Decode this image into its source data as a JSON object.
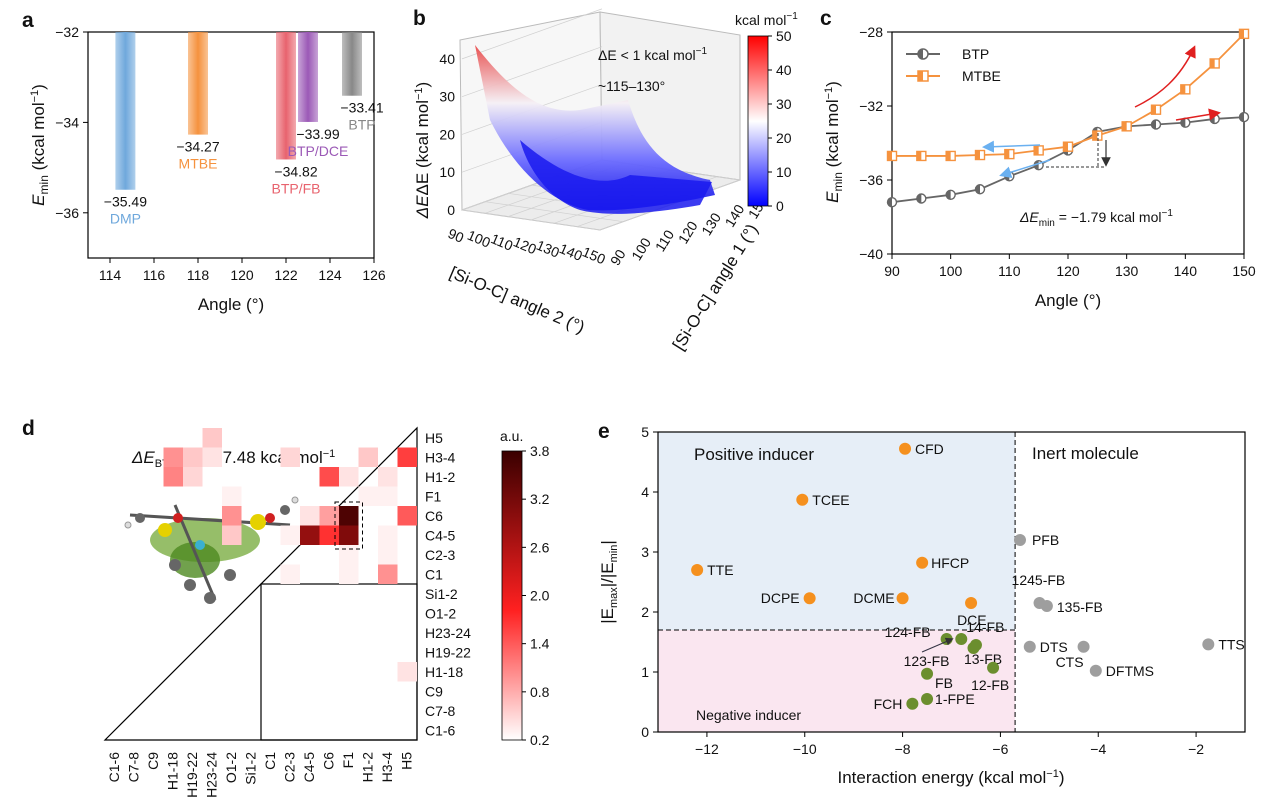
{
  "panels": {
    "a": "a",
    "b": "b",
    "c": "c",
    "d": "d",
    "e": "e"
  },
  "chart_data": [
    {
      "id": "a",
      "type": "bar",
      "xlabel": "Angle (°)",
      "ylabel": "E",
      "ylabel_sub": "min",
      "ylabel_unit": " (kcal mol",
      "xlim": [
        113,
        126
      ],
      "ylim": [
        -37,
        -32
      ],
      "xticks": [
        "114",
        "116",
        "118",
        "120",
        "122",
        "124",
        "126"
      ],
      "yticks": [
        "-32",
        "-34",
        "-36"
      ],
      "bars": [
        {
          "name": "DMP",
          "x": 114.7,
          "value": -35.49,
          "value_label": "−35.49",
          "color": "#6fa8dc"
        },
        {
          "name": "MTBE",
          "x": 118.0,
          "value": -34.27,
          "value_label": "−34.27",
          "color": "#f5923e"
        },
        {
          "name": "BTP/FB",
          "x": 122.0,
          "value": -34.82,
          "value_label": "−34.82",
          "color": "#e8636e"
        },
        {
          "name": "BTP/DCE",
          "x": 123.0,
          "value": -33.99,
          "value_label": "−33.99",
          "color": "#9b59b6"
        },
        {
          "name": "BTP",
          "x": 125.0,
          "value": -33.41,
          "value_label": "−33.41",
          "color": "#888888"
        }
      ]
    },
    {
      "id": "b",
      "type": "surface",
      "zlabel": "ΔE (kcal mol",
      "xlabel": "[Si-O-C] angle 2 (°)",
      "ylabel": "[Si-O-C] angle 1 (°)",
      "zticks": [
        "0",
        "10",
        "20",
        "30",
        "40"
      ],
      "xticks": [
        "90",
        "100",
        "110",
        "120",
        "130",
        "140",
        "150"
      ],
      "yticks": [
        "90",
        "100",
        "110",
        "120",
        "130",
        "140",
        "150"
      ],
      "annotation1": "ΔE < 1 kcal mol",
      "annotation2": "~115–130°",
      "colorbar": {
        "title": "kcal mol",
        "ticks": [
          "0",
          "10",
          "20",
          "30",
          "40",
          "50"
        ],
        "min": 0,
        "max": 50
      }
    },
    {
      "id": "c",
      "type": "line",
      "xlabel": "Angle (°)",
      "ylabel": "E",
      "ylabel_sub": "min",
      "ylabel_unit": " (kcal mol",
      "xlim": [
        90,
        150
      ],
      "ylim": [
        -40,
        -28
      ],
      "xticks": [
        "90",
        "100",
        "110",
        "120",
        "130",
        "140",
        "150"
      ],
      "yticks": [
        "-28",
        "-32",
        "-36",
        "-40"
      ],
      "annotation": "ΔE",
      "annotation_sub": "min",
      "annotation_value": " = −1.79 kcal mol",
      "series": [
        {
          "name": "BTP",
          "color": "#666666",
          "x": [
            90,
            95,
            100,
            105,
            110,
            115,
            120,
            125,
            130,
            135,
            140,
            145,
            150
          ],
          "y": [
            -37.2,
            -37.0,
            -36.8,
            -36.5,
            -35.8,
            -35.2,
            -34.4,
            -33.4,
            -33.1,
            -33.0,
            -32.9,
            -32.7,
            -32.6
          ]
        },
        {
          "name": "MTBE",
          "color": "#f5923e",
          "x": [
            90,
            95,
            100,
            105,
            110,
            115,
            120,
            125,
            130,
            135,
            140,
            145,
            150
          ],
          "y": [
            -34.7,
            -34.7,
            -34.7,
            -34.65,
            -34.6,
            -34.4,
            -34.2,
            -33.6,
            -33.1,
            -32.2,
            -31.1,
            -29.7,
            -28.1
          ]
        }
      ]
    },
    {
      "id": "d",
      "type": "heatmap",
      "title": "ΔE",
      "title_sub": "BTP/FB",
      "title_value": " = −7.48 kcal mol",
      "labels": [
        "C1-6",
        "C7-8",
        "C9",
        "H1-18",
        "H19-22",
        "H23-24",
        "O1-2",
        "Si1-2",
        "C1",
        "C2-3",
        "C4-5",
        "C6",
        "F1",
        "H1-2",
        "H3-4",
        "H5"
      ],
      "colorbar": {
        "title": "a.u.",
        "ticks": [
          "0.2",
          "0.8",
          "1.4",
          "2.0",
          "2.6",
          "3.2",
          "3.8"
        ],
        "min": 0.2,
        "max": 3.8
      },
      "cells": [
        {
          "r": 15,
          "c": 5,
          "v": 0.6
        },
        {
          "r": 14,
          "c": 3,
          "v": 1.0
        },
        {
          "r": 14,
          "c": 4,
          "v": 0.6
        },
        {
          "r": 14,
          "c": 5,
          "v": 0.4
        },
        {
          "r": 14,
          "c": 9,
          "v": 0.5
        },
        {
          "r": 14,
          "c": 13,
          "v": 0.6
        },
        {
          "r": 14,
          "c": 15,
          "v": 1.6
        },
        {
          "r": 13,
          "c": 3,
          "v": 1.1
        },
        {
          "r": 13,
          "c": 4,
          "v": 0.5
        },
        {
          "r": 13,
          "c": 11,
          "v": 1.5
        },
        {
          "r": 13,
          "c": 12,
          "v": 0.4
        },
        {
          "r": 13,
          "c": 14,
          "v": 0.4
        },
        {
          "r": 12,
          "c": 6,
          "v": 0.3
        },
        {
          "r": 12,
          "c": 13,
          "v": 0.3
        },
        {
          "r": 12,
          "c": 14,
          "v": 0.3
        },
        {
          "r": 11,
          "c": 6,
          "v": 1.0
        },
        {
          "r": 11,
          "c": 10,
          "v": 0.4
        },
        {
          "r": 11,
          "c": 11,
          "v": 0.9
        },
        {
          "r": 11,
          "c": 12,
          "v": 3.6
        },
        {
          "r": 11,
          "c": 15,
          "v": 1.4
        },
        {
          "r": 10,
          "c": 6,
          "v": 0.6
        },
        {
          "r": 10,
          "c": 9,
          "v": 0.3
        },
        {
          "r": 10,
          "c": 10,
          "v": 2.9
        },
        {
          "r": 10,
          "c": 11,
          "v": 1.7
        },
        {
          "r": 10,
          "c": 12,
          "v": 3.1
        },
        {
          "r": 10,
          "c": 14,
          "v": 0.3
        },
        {
          "r": 9,
          "c": 12,
          "v": 0.3
        },
        {
          "r": 9,
          "c": 14,
          "v": 0.3
        },
        {
          "r": 8,
          "c": 9,
          "v": 0.3
        },
        {
          "r": 8,
          "c": 12,
          "v": 0.3
        },
        {
          "r": 8,
          "c": 14,
          "v": 1.0
        },
        {
          "r": 3,
          "c": 15,
          "v": 0.4
        }
      ]
    },
    {
      "id": "e",
      "type": "scatter",
      "xlabel": "Interaction energy (kcal mol",
      "ylabel": "|E",
      "ylabel_mid": "max",
      "ylabel_rest": "|/|E",
      "ylabel_end": "min",
      "ylabel_close": "|",
      "xlim": [
        -13,
        -1
      ],
      "ylim": [
        0,
        5
      ],
      "xticks": [
        "-12",
        "-10",
        "-8",
        "-6",
        "-4",
        "-2"
      ],
      "yticks": [
        "0",
        "1",
        "2",
        "3",
        "4",
        "5"
      ],
      "region_labels": {
        "positive": "Positive inducer",
        "inert": "Inert molecule",
        "negative": "Negative inducer"
      },
      "divider_x": -5.7,
      "divider_y": 1.7,
      "points": [
        {
          "name": "CFD",
          "x": -7.95,
          "y": 4.72,
          "group": "positive"
        },
        {
          "name": "TCEE",
          "x": -10.05,
          "y": 3.87,
          "group": "positive"
        },
        {
          "name": "TTE",
          "x": -12.2,
          "y": 2.7,
          "group": "positive"
        },
        {
          "name": "HFCP",
          "x": -7.6,
          "y": 2.82,
          "group": "positive"
        },
        {
          "name": "DCPE",
          "x": -9.9,
          "y": 2.23,
          "group": "positive"
        },
        {
          "name": "DCME",
          "x": -8.0,
          "y": 2.23,
          "group": "positive"
        },
        {
          "name": "DCE",
          "x": -6.6,
          "y": 2.15,
          "group": "positive"
        },
        {
          "name": "124-FB",
          "x": -7.1,
          "y": 1.55,
          "group": "negative"
        },
        {
          "name": "14-FB",
          "x": -6.8,
          "y": 1.55,
          "group": "negative"
        },
        {
          "name": "123-FB",
          "x": -6.55,
          "y": 1.4,
          "group": "negative"
        },
        {
          "name": "13-FB",
          "x": -6.5,
          "y": 1.45,
          "group": "negative"
        },
        {
          "name": "12-FB",
          "x": -6.15,
          "y": 1.07,
          "group": "negative"
        },
        {
          "name": "FB",
          "x": -7.5,
          "y": 0.97,
          "group": "negative"
        },
        {
          "name": "1-FPE",
          "x": -7.5,
          "y": 0.55,
          "group": "negative"
        },
        {
          "name": "FCH",
          "x": -7.8,
          "y": 0.47,
          "group": "negative"
        },
        {
          "name": "PFB",
          "x": -5.6,
          "y": 3.2,
          "group": "inert"
        },
        {
          "name": "1245-FB",
          "x": -5.2,
          "y": 2.15,
          "group": "inert"
        },
        {
          "name": "135-FB",
          "x": -5.05,
          "y": 2.1,
          "group": "inert"
        },
        {
          "name": "DTS",
          "x": -5.4,
          "y": 1.42,
          "group": "inert"
        },
        {
          "name": "CTS",
          "x": -4.3,
          "y": 1.42,
          "group": "inert"
        },
        {
          "name": "DFTMS",
          "x": -4.05,
          "y": 1.02,
          "group": "inert"
        },
        {
          "name": "TTS",
          "x": -1.75,
          "y": 1.46,
          "group": "inert"
        }
      ]
    }
  ],
  "colors": {
    "positive": "#f5901e",
    "negative": "#6b8e2e",
    "inert": "#9e9e9e",
    "pos_bg": "#e6eef7",
    "neg_bg": "#fae6f0"
  }
}
